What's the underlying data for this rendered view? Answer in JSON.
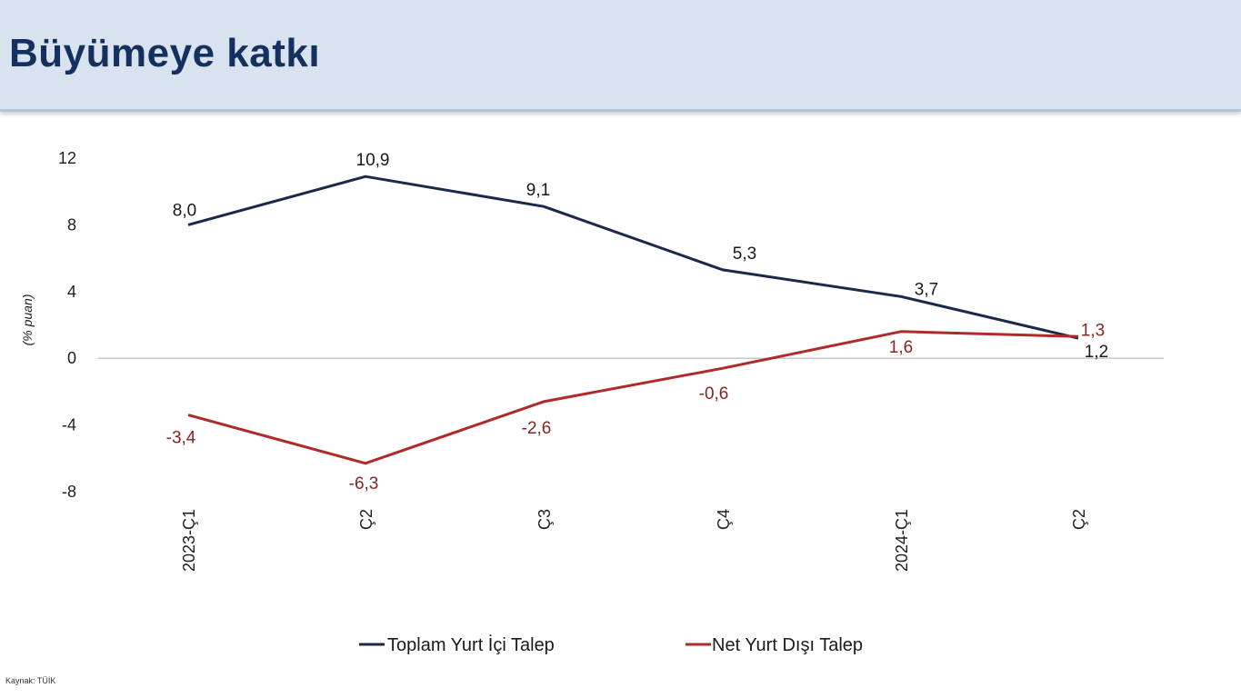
{
  "header": {
    "title": "Büyümeye katkı"
  },
  "chart_data": {
    "type": "line",
    "title": "Büyümeye katkı",
    "ylabel": "(% puan)",
    "xlabel": "",
    "categories": [
      "2023-Ç1",
      "Ç2",
      "Ç3",
      "Ç4",
      "2024-Ç1",
      "Ç2"
    ],
    "ylim": [
      -8,
      12
    ],
    "yticks": [
      12,
      8,
      4,
      0,
      -4,
      -8
    ],
    "ytick_labels": [
      "12",
      "8",
      "4",
      "0",
      "-4",
      "-8"
    ],
    "grid": false,
    "legend_position": "bottom",
    "series": [
      {
        "name": "Toplam Yurt İçi Talep",
        "color": "#1b2a48",
        "values": [
          8.0,
          10.9,
          9.1,
          5.3,
          3.7,
          1.2
        ],
        "labels": [
          "8,0",
          "10,9",
          "9,1",
          "5,3",
          "3,7",
          "1,2"
        ]
      },
      {
        "name": "Net Yurt Dışı Talep",
        "color": "#b02a2a",
        "values": [
          -3.4,
          -6.3,
          -2.6,
          -0.6,
          1.6,
          1.3
        ],
        "labels": [
          "-3,4",
          "-6,3",
          "-2,6",
          "-0,6",
          "1,6",
          "1,3"
        ]
      }
    ]
  },
  "source": "Kaynak: TÜİK"
}
